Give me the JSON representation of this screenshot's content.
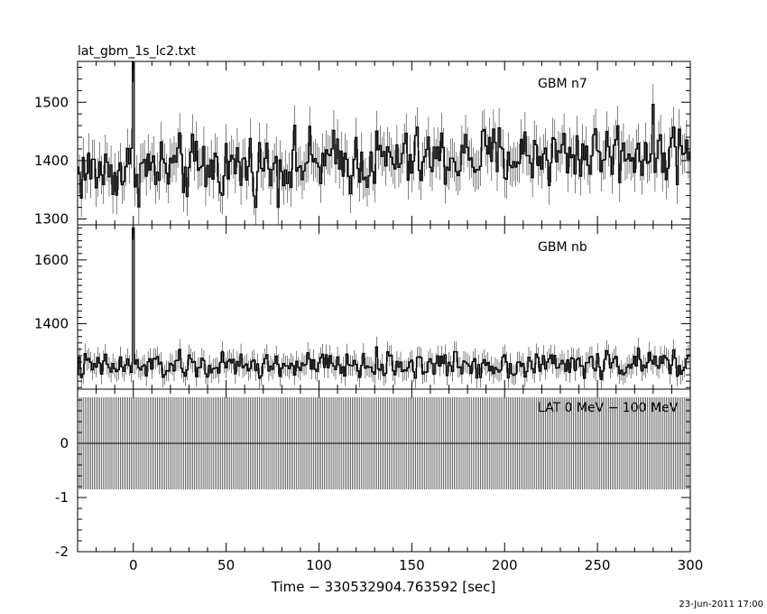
{
  "title": "lat_gbm_1s_lc2.txt",
  "xlabel": "Time − 330532904.763592 [sec]",
  "timestamp": "23-Jun-2011 17:00",
  "chart_data": [
    {
      "type": "line",
      "label": "GBM n7",
      "xlim": [
        -30,
        300
      ],
      "ylim": [
        1290,
        1570
      ],
      "yticks": [
        1300,
        1400,
        1500
      ],
      "baseline": 1380,
      "trend_end": 1420,
      "noise": 45,
      "spike": {
        "x": 0,
        "y": 1570
      }
    },
    {
      "type": "line",
      "label": "GBM nb",
      "xlim": [
        -30,
        300
      ],
      "ylim": [
        1195,
        1710
      ],
      "yticks": [
        1400,
        1600
      ],
      "baseline": 1265,
      "trend_end": 1275,
      "noise": 35,
      "spike": {
        "x": 0,
        "y": 1700
      }
    },
    {
      "type": "line",
      "label": "LAT 0 MeV − 100 MeV",
      "xlim": [
        -30,
        300
      ],
      "ylim": [
        -2,
        1
      ],
      "yticks": [
        -2,
        -1,
        0
      ],
      "value": 0,
      "errorbar": [
        -0.85,
        0.85
      ]
    }
  ],
  "xticks": [
    0,
    50,
    100,
    150,
    200,
    250,
    300
  ]
}
